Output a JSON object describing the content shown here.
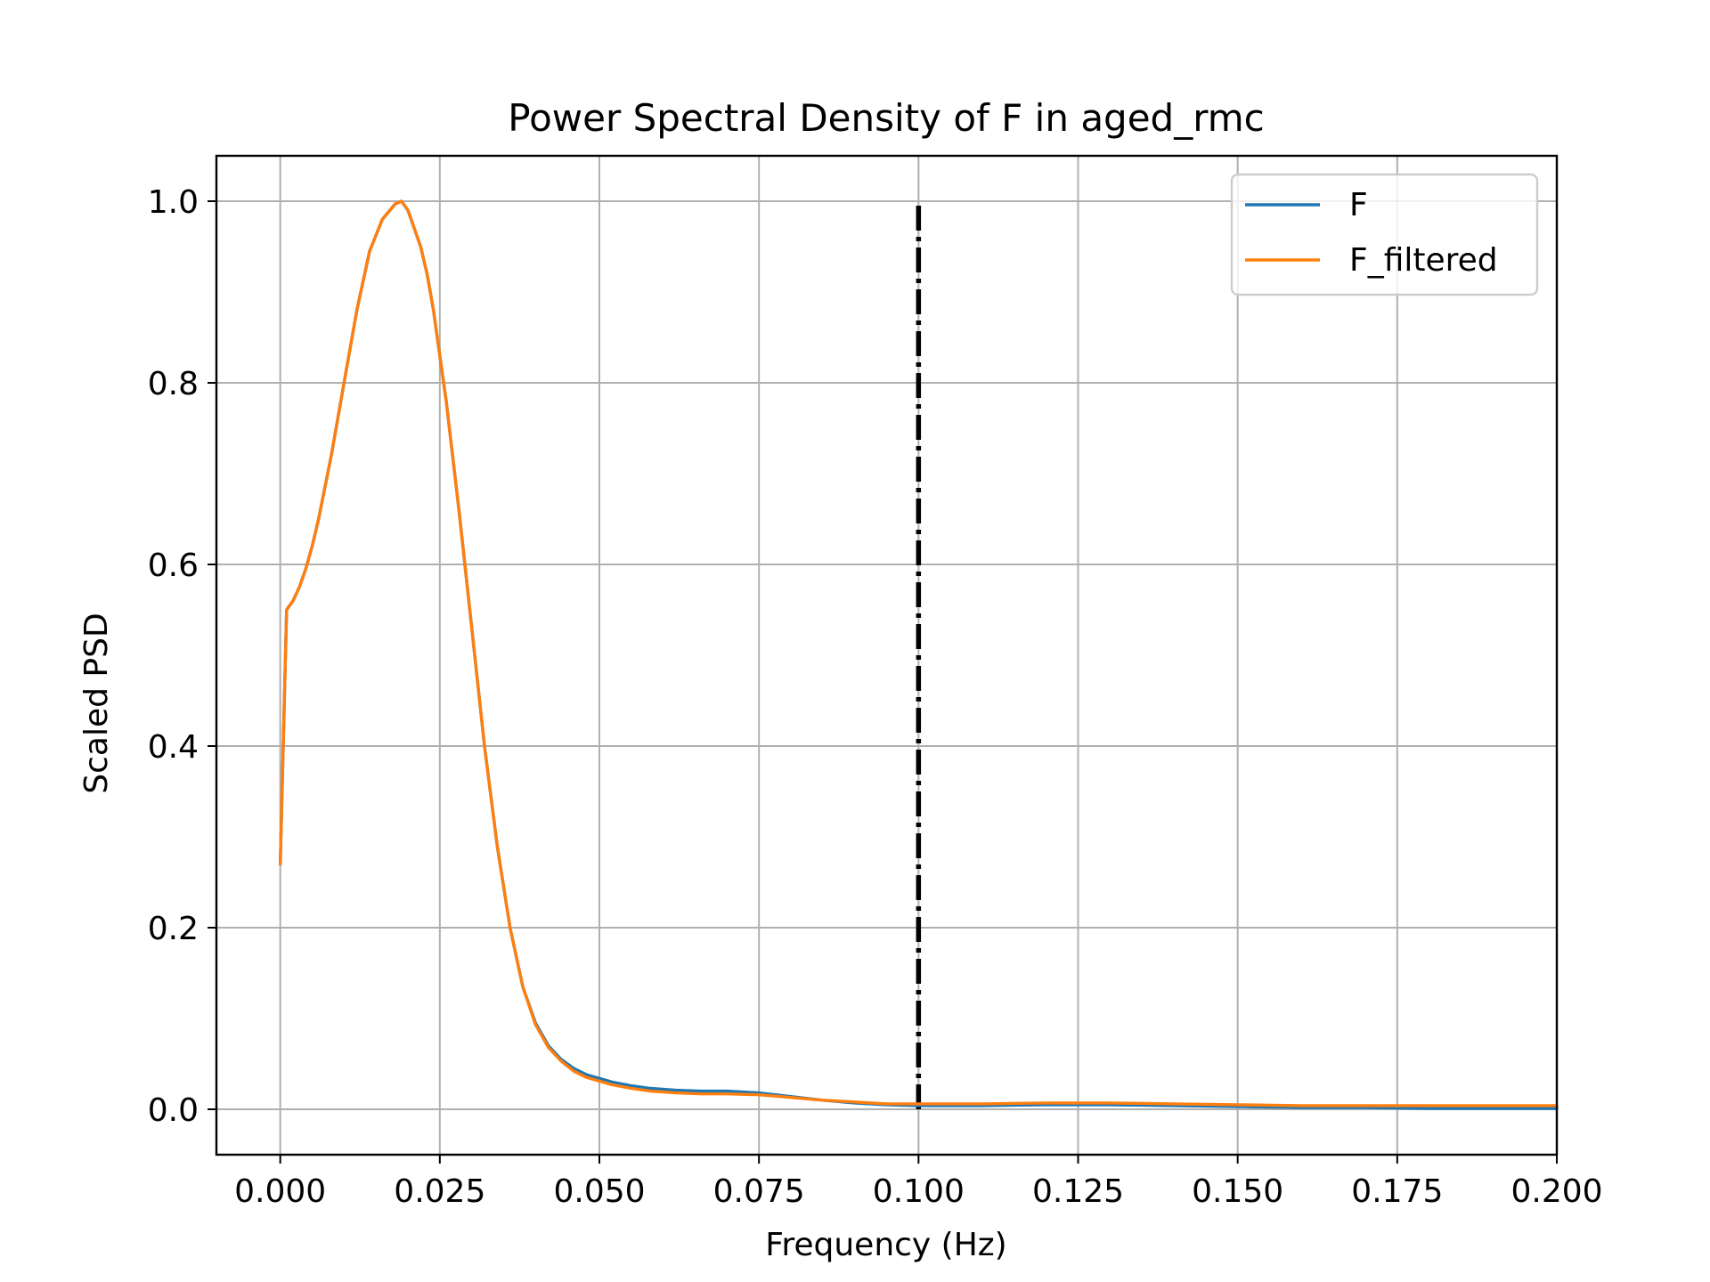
{
  "chart_data": {
    "type": "line",
    "title": "Power Spectral Density of F in aged_rmc",
    "xlabel": "Frequency (Hz)",
    "ylabel": "Scaled PSD",
    "xlim": [
      -0.01,
      0.2
    ],
    "ylim": [
      -0.05,
      1.05
    ],
    "x_ticks": [
      0.0,
      0.025,
      0.05,
      0.075,
      0.1,
      0.125,
      0.15,
      0.175,
      0.2
    ],
    "x_tick_labels": [
      "0.000",
      "0.025",
      "0.050",
      "0.075",
      "0.100",
      "0.125",
      "0.150",
      "0.175",
      "0.200"
    ],
    "y_ticks": [
      0.0,
      0.2,
      0.4,
      0.6,
      0.8,
      1.0
    ],
    "y_tick_labels": [
      "0.0",
      "0.2",
      "0.4",
      "0.6",
      "0.8",
      "1.0"
    ],
    "grid": true,
    "legend_position": "top-right",
    "series": [
      {
        "name": "F",
        "color": "#1f77b4",
        "x": [
          0.0,
          0.001,
          0.002,
          0.003,
          0.004,
          0.005,
          0.006,
          0.008,
          0.01,
          0.012,
          0.014,
          0.016,
          0.018,
          0.019,
          0.02,
          0.021,
          0.022,
          0.023,
          0.024,
          0.025,
          0.026,
          0.028,
          0.03,
          0.032,
          0.034,
          0.036,
          0.038,
          0.04,
          0.042,
          0.044,
          0.046,
          0.048,
          0.05,
          0.052,
          0.055,
          0.058,
          0.062,
          0.066,
          0.07,
          0.075,
          0.08,
          0.085,
          0.09,
          0.095,
          0.1,
          0.11,
          0.12,
          0.13,
          0.14,
          0.15,
          0.16,
          0.17,
          0.18,
          0.19,
          0.2
        ],
        "y": [
          0.27,
          0.55,
          0.56,
          0.575,
          0.595,
          0.62,
          0.65,
          0.72,
          0.8,
          0.88,
          0.945,
          0.98,
          0.997,
          1.0,
          0.99,
          0.97,
          0.95,
          0.92,
          0.88,
          0.83,
          0.78,
          0.66,
          0.53,
          0.4,
          0.29,
          0.2,
          0.135,
          0.095,
          0.07,
          0.055,
          0.045,
          0.038,
          0.034,
          0.03,
          0.026,
          0.023,
          0.021,
          0.02,
          0.02,
          0.018,
          0.014,
          0.01,
          0.007,
          0.005,
          0.004,
          0.004,
          0.005,
          0.005,
          0.004,
          0.003,
          0.002,
          0.002,
          0.001,
          0.001,
          0.001
        ]
      },
      {
        "name": "F_filtered",
        "color": "#ff7f0e",
        "x": [
          0.0,
          0.001,
          0.002,
          0.003,
          0.004,
          0.005,
          0.006,
          0.008,
          0.01,
          0.012,
          0.014,
          0.016,
          0.018,
          0.019,
          0.02,
          0.021,
          0.022,
          0.023,
          0.024,
          0.025,
          0.026,
          0.028,
          0.03,
          0.032,
          0.034,
          0.036,
          0.038,
          0.04,
          0.042,
          0.044,
          0.046,
          0.048,
          0.05,
          0.052,
          0.055,
          0.058,
          0.062,
          0.066,
          0.07,
          0.075,
          0.08,
          0.085,
          0.09,
          0.095,
          0.1,
          0.11,
          0.12,
          0.13,
          0.14,
          0.15,
          0.16,
          0.17,
          0.18,
          0.19,
          0.2
        ],
        "y": [
          0.27,
          0.55,
          0.56,
          0.575,
          0.595,
          0.62,
          0.65,
          0.72,
          0.8,
          0.88,
          0.945,
          0.98,
          0.997,
          1.0,
          0.99,
          0.97,
          0.95,
          0.92,
          0.88,
          0.83,
          0.78,
          0.66,
          0.53,
          0.4,
          0.29,
          0.2,
          0.135,
          0.093,
          0.068,
          0.053,
          0.042,
          0.035,
          0.031,
          0.027,
          0.023,
          0.02,
          0.018,
          0.017,
          0.017,
          0.016,
          0.013,
          0.01,
          0.008,
          0.006,
          0.006,
          0.006,
          0.007,
          0.007,
          0.006,
          0.005,
          0.004,
          0.004,
          0.004,
          0.004,
          0.004
        ]
      }
    ],
    "vlines": [
      {
        "x": 0.1,
        "y_range": [
          0.0,
          1.0
        ],
        "color": "#000000",
        "style": "dash-dot"
      }
    ]
  }
}
